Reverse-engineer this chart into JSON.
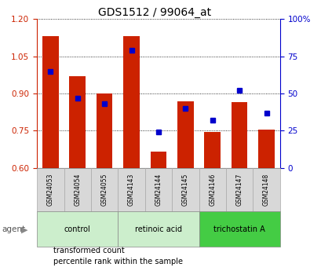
{
  "title": "GDS1512 / 99064_at",
  "samples": [
    "GSM24053",
    "GSM24054",
    "GSM24055",
    "GSM24143",
    "GSM24144",
    "GSM24145",
    "GSM24146",
    "GSM24147",
    "GSM24148"
  ],
  "red_values": [
    1.13,
    0.97,
    0.9,
    1.13,
    0.665,
    0.87,
    0.745,
    0.865,
    0.755
  ],
  "blue_values": [
    65,
    47,
    43,
    79,
    24,
    40,
    32,
    52,
    37
  ],
  "groups": [
    {
      "label": "control",
      "start": 0,
      "end": 2,
      "color": "#cceecc"
    },
    {
      "label": "retinoic acid",
      "start": 3,
      "end": 5,
      "color": "#cceecc"
    },
    {
      "label": "trichostatin A",
      "start": 6,
      "end": 8,
      "color": "#44cc44"
    }
  ],
  "ylim_left": [
    0.6,
    1.2
  ],
  "ylim_right": [
    0,
    100
  ],
  "yticks_left": [
    0.6,
    0.75,
    0.9,
    1.05,
    1.2
  ],
  "yticks_right": [
    0,
    25,
    50,
    75,
    100
  ],
  "ytick_labels_right": [
    "0",
    "25",
    "50",
    "75",
    "100%"
  ],
  "bar_color": "#cc2200",
  "dot_color": "#0000cc",
  "bar_bottom": 0.6,
  "legend_red": "transformed count",
  "legend_blue": "percentile rank within the sample",
  "agent_label": "agent",
  "sample_box_color": "#d8d8d8",
  "sample_box_edge": "#aaaaaa"
}
